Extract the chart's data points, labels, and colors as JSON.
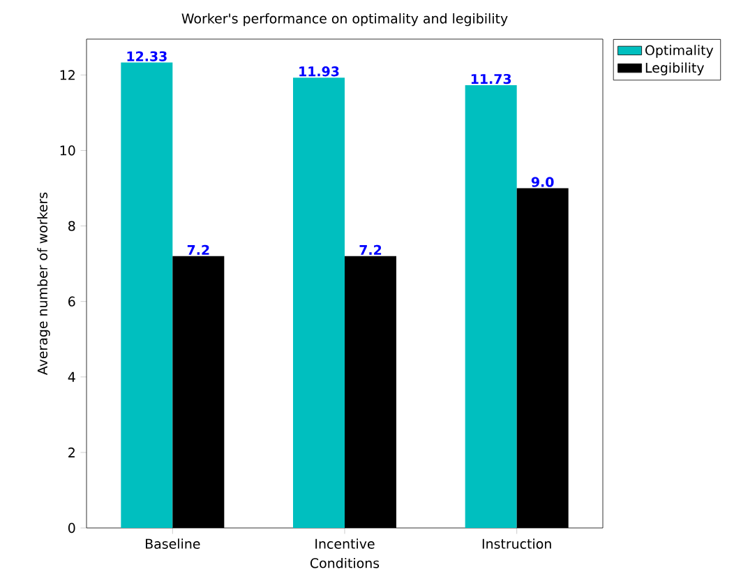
{
  "chart_data": {
    "type": "bar",
    "title": "Worker's performance on optimality and legibility",
    "xlabel": "Conditions",
    "ylabel": "Average number of workers",
    "categories": [
      "Baseline",
      "Incentive",
      "Instruction"
    ],
    "series": [
      {
        "name": "Optimality",
        "color": "#00bfbf",
        "values": [
          12.33,
          11.93,
          11.73
        ],
        "value_labels": [
          "12.33",
          "11.93",
          "11.73"
        ]
      },
      {
        "name": "Legibility",
        "color": "#000000",
        "values": [
          7.2,
          7.2,
          9.0
        ],
        "value_labels": [
          "7.2",
          "7.2",
          "9.0"
        ]
      }
    ],
    "ylim": [
      0,
      12.95
    ],
    "yticks": [
      0,
      2,
      4,
      6,
      8,
      10,
      12
    ],
    "grid": false,
    "legend": "top right"
  }
}
